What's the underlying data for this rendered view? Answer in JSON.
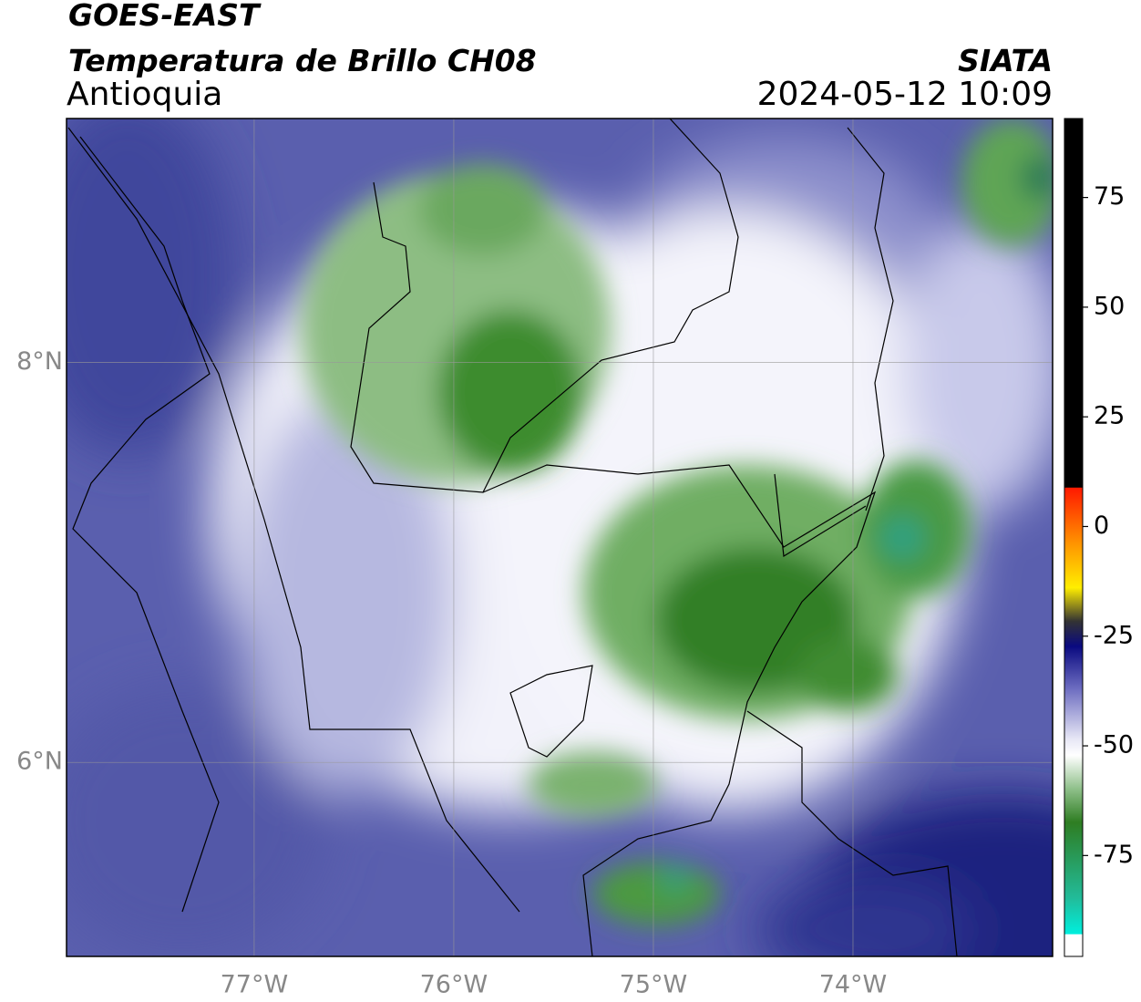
{
  "header": {
    "title": "GOES-EAST",
    "subtitle": "Temperatura de Brillo CH08",
    "region": "Antioquia",
    "source": "SIATA",
    "timestamp": "2024-05-12 10:09"
  },
  "map": {
    "xlim": [
      -77.94,
      -73.0
    ],
    "ylim": [
      5.03,
      9.22
    ],
    "xticks": [
      {
        "value": -77,
        "label": "77°W"
      },
      {
        "value": -76,
        "label": "76°W"
      },
      {
        "value": -75,
        "label": "75°W"
      },
      {
        "value": -74,
        "label": "74°W"
      }
    ],
    "yticks": [
      {
        "value": 8,
        "label": "8°N"
      },
      {
        "value": 6,
        "label": "6°N"
      }
    ]
  },
  "colorbar": {
    "ylim": [
      -98,
      93
    ],
    "yticks": [
      75,
      50,
      25,
      0,
      -25,
      -50,
      -75
    ]
  }
}
